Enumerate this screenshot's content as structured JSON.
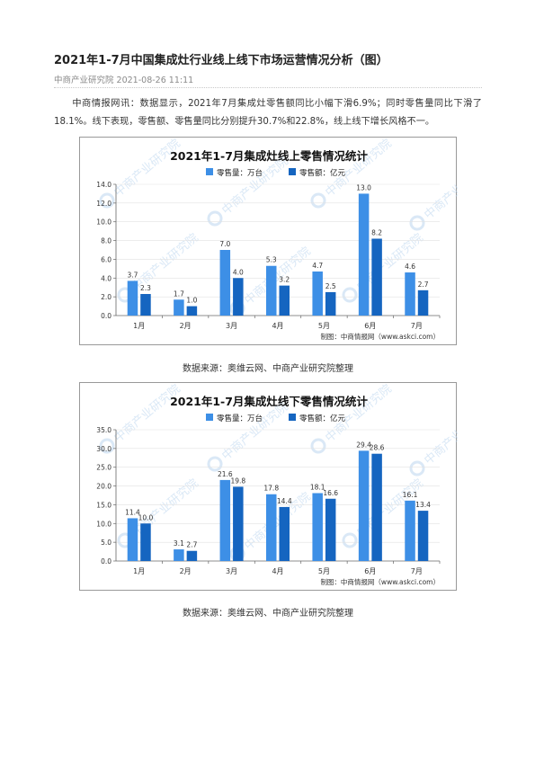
{
  "article": {
    "title": "2021年1-7月中国集成灶行业线上线下市场运营情况分析（图）",
    "source": "中商产业研究院",
    "date": "2021-08-26 11:11",
    "body": "中商情报网讯：数据显示，2021年7月集成灶零售额同比小幅下滑6.9%；同时零售量同比下滑了18.1%。线下表现，零售额、零售量同比分别提升30.7%和22.8%，线上线下增长风格不一。"
  },
  "colors": {
    "volume": "#3d8fe6",
    "amount": "#1565c0",
    "watermark": "#bcd6ef"
  },
  "watermark": {
    "text": "中商产业研究院",
    "logo_icon": "askci-logo-icon"
  },
  "chart_data": [
    {
      "type": "bar",
      "title": "2021年1-7月集成灶线上零售情况统计",
      "categories": [
        "1月",
        "2月",
        "3月",
        "4月",
        "5月",
        "6月",
        "7月"
      ],
      "series": [
        {
          "name": "零售量：万台",
          "values": [
            3.7,
            1.7,
            7.0,
            5.3,
            4.7,
            13.0,
            4.6
          ]
        },
        {
          "name": "零售额：亿元",
          "values": [
            2.3,
            1.0,
            4.0,
            3.2,
            2.5,
            8.2,
            2.7
          ]
        }
      ],
      "yticks": [
        "0.0",
        "2.0",
        "4.0",
        "6.0",
        "8.0",
        "10.0",
        "12.0",
        "14.0"
      ],
      "ylim": [
        0,
        14
      ],
      "legend_position": "top",
      "credit": "制图：中商情报网（www.askci.com）",
      "caption": "数据来源：奥维云网、中商产业研究院整理"
    },
    {
      "type": "bar",
      "title": "2021年1-7月集成灶线下零售情况统计",
      "categories": [
        "1月",
        "2月",
        "3月",
        "4月",
        "5月",
        "6月",
        "7月"
      ],
      "series": [
        {
          "name": "零售量：万台",
          "values": [
            11.4,
            3.1,
            21.6,
            17.8,
            18.1,
            29.4,
            16.1
          ]
        },
        {
          "name": "零售额：亿元",
          "values": [
            10.0,
            2.7,
            19.8,
            14.4,
            16.6,
            28.6,
            13.4
          ]
        }
      ],
      "yticks": [
        "0.0",
        "5.0",
        "10.0",
        "15.0",
        "20.0",
        "25.0",
        "30.0",
        "35.0"
      ],
      "ylim": [
        0,
        35
      ],
      "legend_position": "top",
      "credit": "制图：中商情报网（www.askci.com）",
      "caption": "数据来源：奥维云网、中商产业研究院整理"
    }
  ]
}
